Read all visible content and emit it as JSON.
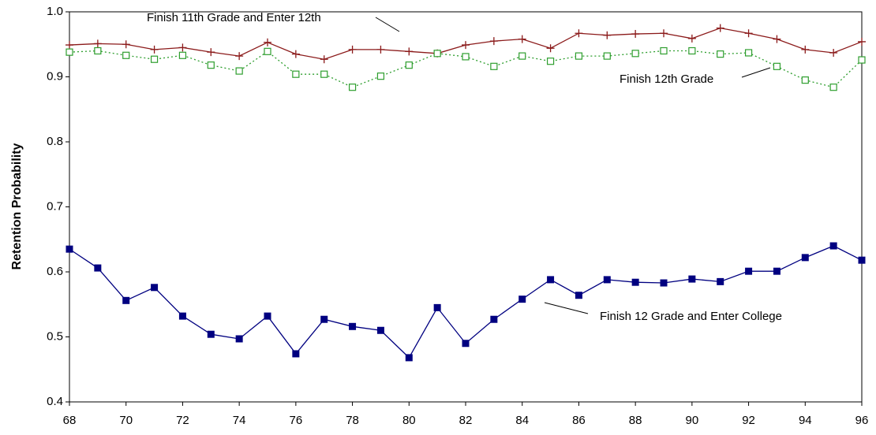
{
  "chart_data": {
    "type": "line",
    "y_label": "Retention Probability",
    "x": [
      68,
      69,
      70,
      71,
      72,
      73,
      74,
      75,
      76,
      77,
      78,
      79,
      80,
      81,
      82,
      83,
      84,
      85,
      86,
      87,
      88,
      89,
      90,
      91,
      92,
      93,
      94,
      95,
      96
    ],
    "xlim": [
      68,
      96
    ],
    "xticks": [
      68,
      70,
      72,
      74,
      76,
      78,
      80,
      82,
      84,
      86,
      88,
      90,
      92,
      94,
      96
    ],
    "ylim": [
      0.4,
      1
    ],
    "yticks": [
      0.4,
      0.5,
      0.6,
      0.7,
      0.8,
      0.9,
      {
        "value": 1,
        "label": "1.0"
      }
    ],
    "grid": false,
    "series": [
      {
        "name": "Finish 11th Grade and Enter 12th",
        "color": "#8b1a1a",
        "marker": "plus",
        "dashed": false,
        "values": [
          0.949,
          0.951,
          0.95,
          0.942,
          0.945,
          0.938,
          0.932,
          0.953,
          0.935,
          0.927,
          0.942,
          0.942,
          0.939,
          0.936,
          0.949,
          0.955,
          0.958,
          0.944,
          0.967,
          0.964,
          0.966,
          0.967,
          0.959,
          0.975,
          0.967,
          0.958,
          0.942,
          0.937,
          0.954
        ]
      },
      {
        "name": "Finish 12th Grade",
        "color": "#2e9e2e",
        "marker": "open-square",
        "dashed": true,
        "values": [
          0.938,
          0.94,
          0.933,
          0.927,
          0.933,
          0.918,
          0.909,
          0.939,
          0.904,
          0.904,
          0.884,
          0.901,
          0.918,
          0.936,
          0.931,
          0.916,
          0.932,
          0.924,
          0.932,
          0.932,
          0.936,
          0.94,
          0.94,
          0.935,
          0.937,
          0.916,
          0.895,
          0.884,
          0.926
        ]
      },
      {
        "name": "Finish 12 Grade and Enter College",
        "color": "#000080",
        "marker": "square",
        "dashed": false,
        "values": [
          0.635,
          0.606,
          0.556,
          0.576,
          0.532,
          0.504,
          0.497,
          0.532,
          0.474,
          0.527,
          0.516,
          0.51,
          0.468,
          0.545,
          0.49,
          0.527,
          0.558,
          0.588,
          0.564,
          0.588,
          0.584,
          0.583,
          0.589,
          0.585,
          0.601,
          0.601,
          0.622,
          0.64,
          0.618
        ]
      }
    ]
  }
}
